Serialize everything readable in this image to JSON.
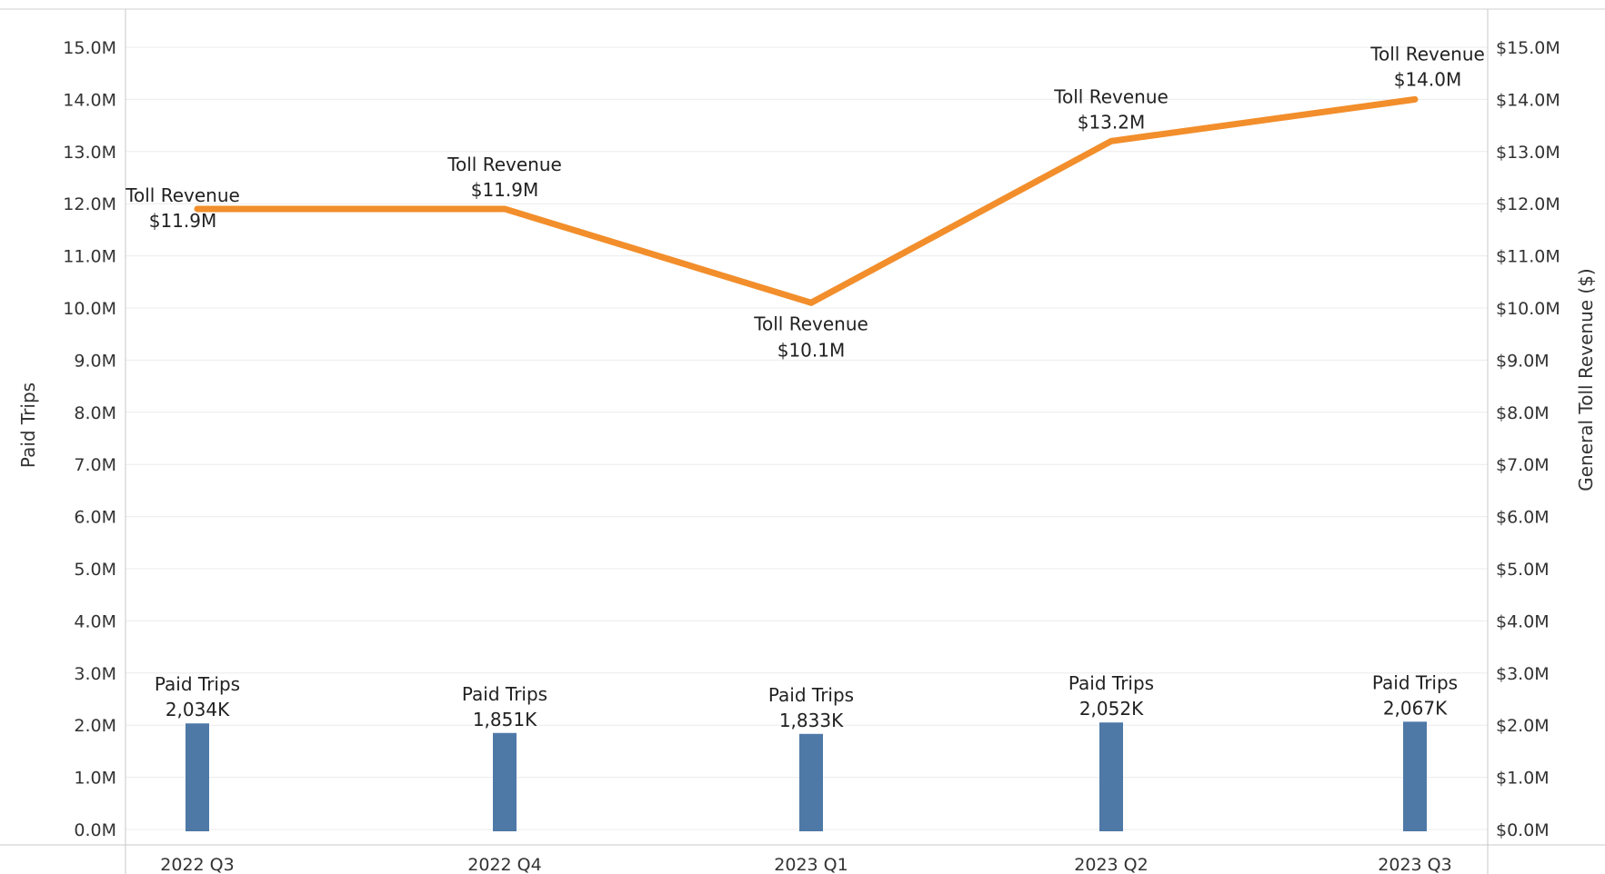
{
  "chart_data": {
    "type": "bar+line",
    "categories": [
      "2022 Q3",
      "2022 Q4",
      "2023 Q1",
      "2023 Q2",
      "2023 Q3"
    ],
    "series": [
      {
        "name": "Paid Trips",
        "type": "bar",
        "axis": "left",
        "color": "#4e79a7",
        "values": [
          2034000,
          1851000,
          1833000,
          2052000,
          2067000
        ],
        "labels": [
          "2,034K",
          "1,851K",
          "1,833K",
          "2,052K",
          "2,067K"
        ]
      },
      {
        "name": "Toll Revenue",
        "type": "line",
        "axis": "right",
        "color": "#f28e2b",
        "values": [
          11900000,
          11900000,
          10100000,
          13200000,
          14000000
        ],
        "labels": [
          "$11.9M",
          "$11.9M",
          "$10.1M",
          "$13.2M",
          "$14.0M"
        ]
      }
    ],
    "ylabel_left": "Paid Trips",
    "ylabel_right": "General Toll Revenue ($)",
    "ylim_left": [
      0,
      15000000
    ],
    "ylim_right": [
      0,
      15000000
    ],
    "yticks_left": [
      "0.0M",
      "1.0M",
      "2.0M",
      "3.0M",
      "4.0M",
      "5.0M",
      "6.0M",
      "7.0M",
      "8.0M",
      "9.0M",
      "10.0M",
      "11.0M",
      "12.0M",
      "13.0M",
      "14.0M",
      "15.0M"
    ],
    "yticks_right": [
      "$0.0M",
      "$1.0M",
      "$2.0M",
      "$3.0M",
      "$4.0M",
      "$5.0M",
      "$6.0M",
      "$7.0M",
      "$8.0M",
      "$9.0M",
      "$10.0M",
      "$11.0M",
      "$12.0M",
      "$13.0M",
      "$14.0M",
      "$15.0M"
    ],
    "grid": true,
    "legend": "none"
  }
}
